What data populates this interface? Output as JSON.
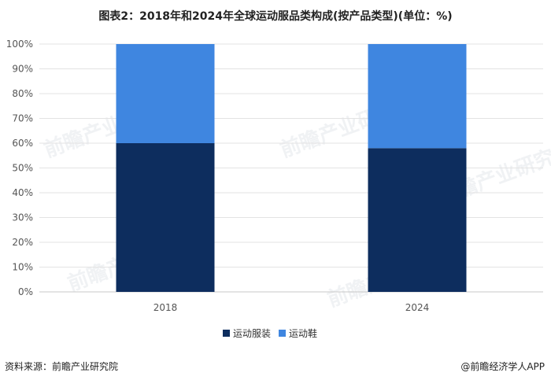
{
  "chart_data": {
    "type": "bar",
    "stacked": true,
    "title": "图表2：2018年和2024年全球运动服品类构成(按产品类型)(单位：%)",
    "categories": [
      "2018",
      "2024"
    ],
    "series": [
      {
        "name": "运动服装",
        "values": [
          60,
          58
        ],
        "color": "#0d2d5e"
      },
      {
        "name": "运动鞋",
        "values": [
          40,
          42
        ],
        "color": "#3f86e0"
      }
    ],
    "ylim": [
      0,
      100
    ],
    "yticks": [
      "0%",
      "10%",
      "20%",
      "30%",
      "40%",
      "50%",
      "60%",
      "70%",
      "80%",
      "90%",
      "100%"
    ],
    "grid": true,
    "legend_position": "bottom"
  },
  "footer": {
    "source": "资料来源：前瞻产业研究院",
    "brand": "@前瞻经济学人APP"
  },
  "watermark": "前瞻产业研究院"
}
